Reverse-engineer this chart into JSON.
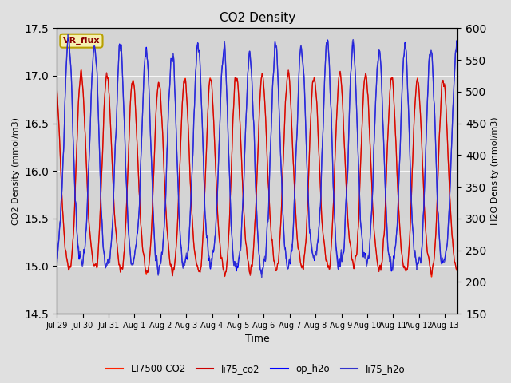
{
  "title": "CO2 Density",
  "xlabel": "Time",
  "ylabel_left": "CO2 Density (mmol/m3)",
  "ylabel_right": "H2O Density (mmol/m3)",
  "ylim_left": [
    14.5,
    17.5
  ],
  "ylim_right": [
    150,
    600
  ],
  "background_color": "#e0e0e0",
  "plot_bg_color": "#d4d4d4",
  "annotation_text": "VR_flux",
  "annotation_color": "#8B0000",
  "annotation_bg": "#f5f0b0",
  "annotation_border": "#b8a000",
  "tick_labels": [
    "Jul 29",
    "Jul 30",
    "Jul 31",
    "Aug 1",
    "Aug 2",
    "Aug 3",
    "Aug 4",
    "Aug 5",
    "Aug 6",
    "Aug 7",
    "Aug 8",
    "Aug 9",
    "Aug 10",
    "Aug 11",
    "Aug 12",
    "Aug 13"
  ],
  "legend_entries": [
    "LI7500 CO2",
    "li75_co2",
    "op_h2o",
    "li75_h2o"
  ],
  "line_colors": {
    "LI7500_CO2": "#FF2200",
    "li75_co2": "#CC0000",
    "op_h2o": "#0000FF",
    "li75_h2o": "#3333CC"
  },
  "legend_colors": [
    "#FF2200",
    "#CC0000",
    "#0000FF",
    "#3333CC"
  ]
}
